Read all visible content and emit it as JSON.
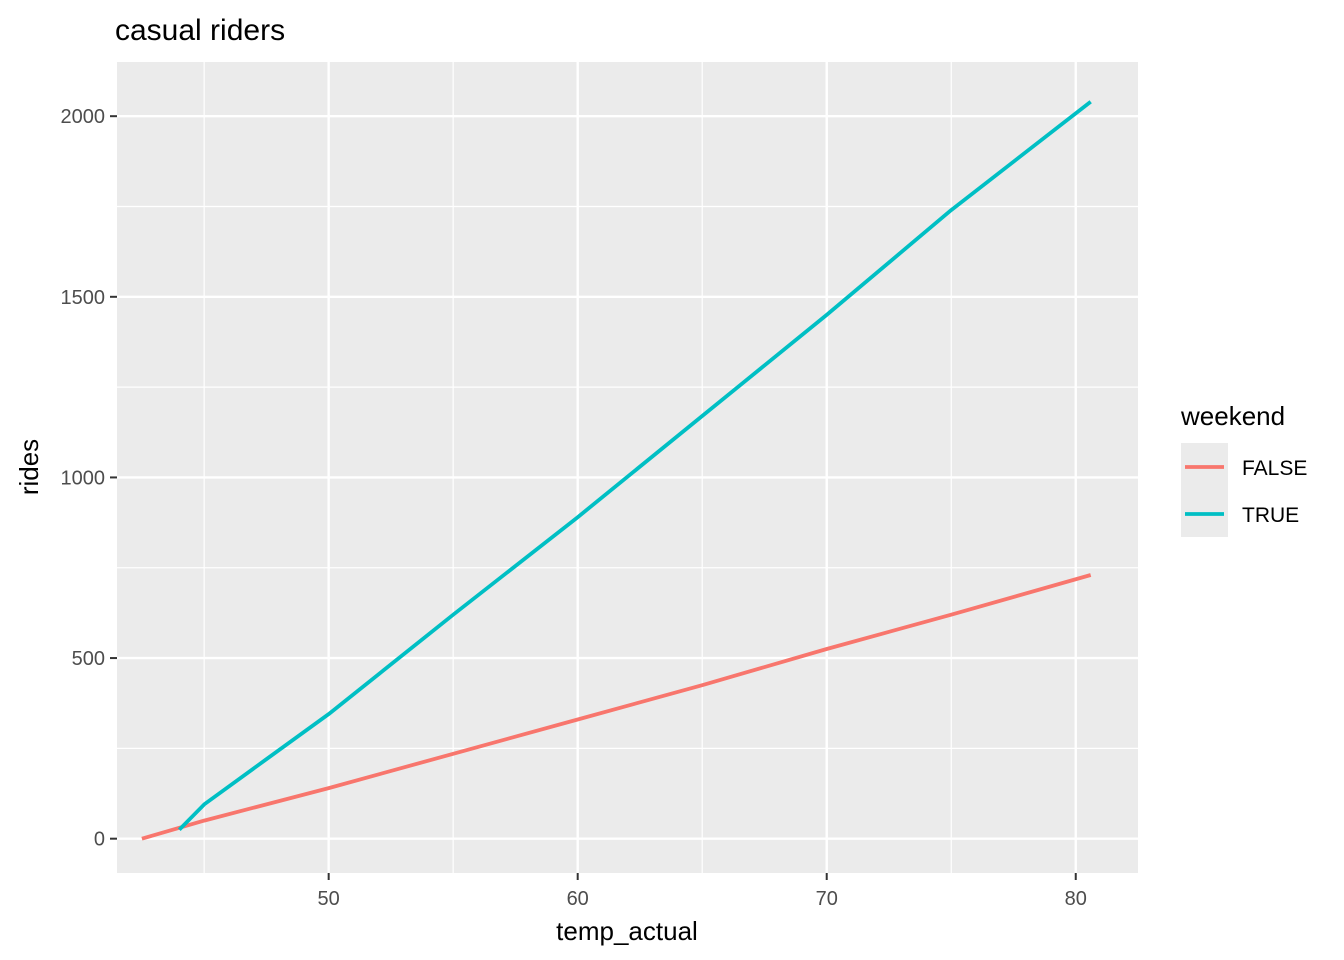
{
  "chart_data": {
    "type": "line",
    "title": "casual riders",
    "xlabel": "temp_actual",
    "ylabel": "rides",
    "xlim": [
      41.5,
      82.5
    ],
    "ylim": [
      -95,
      2150
    ],
    "x_ticks": [
      50,
      60,
      70,
      80
    ],
    "x_minor": [
      45,
      55,
      65,
      75
    ],
    "y_ticks": [
      0,
      500,
      1000,
      1500,
      2000
    ],
    "y_minor": [
      250,
      750,
      1250,
      1750
    ],
    "grid": true,
    "legend": {
      "title": "weekend",
      "position": "right",
      "entries": [
        "FALSE",
        "TRUE"
      ]
    },
    "series": [
      {
        "name": "FALSE",
        "color": "#F8766D",
        "x": [
          42.5,
          45,
          50,
          55,
          60,
          65,
          70,
          75,
          80.6
        ],
        "y": [
          0,
          50,
          140,
          235,
          330,
          425,
          525,
          620,
          730
        ]
      },
      {
        "name": "TRUE",
        "color": "#00BFC4",
        "x": [
          44,
          45,
          47.5,
          50,
          55,
          60,
          65,
          70,
          75,
          80.6
        ],
        "y": [
          25,
          95,
          220,
          345,
          620,
          890,
          1170,
          1450,
          1740,
          2040
        ]
      }
    ]
  }
}
